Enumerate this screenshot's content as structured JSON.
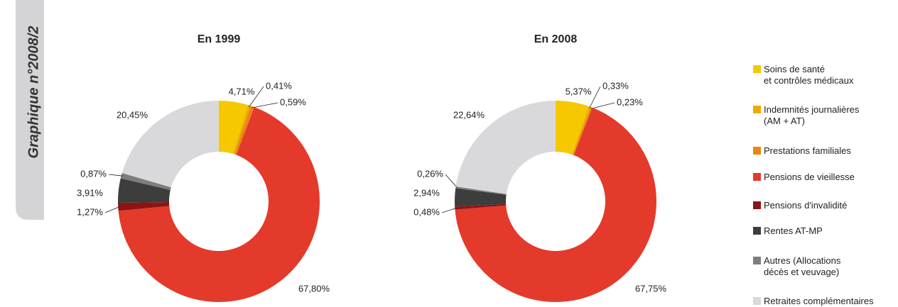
{
  "side_label": "Graphique n°2008/2",
  "chart_data": [
    {
      "type": "pie",
      "title": "En 1999",
      "categories": [
        "Soins de santé\net contrôles médicaux",
        "Indemnités journalières\n(AM + AT)",
        "Prestations familiales",
        "Pensions de vieillesse",
        "Pensions d'invalidité",
        "Rentes AT-MP",
        "Autres (Allocations\ndécès et veuvage)",
        "Retraites complémentaires"
      ],
      "values": [
        4.71,
        0.41,
        0.59,
        67.8,
        1.27,
        3.91,
        0.87,
        20.45
      ],
      "value_labels": [
        "4,71%",
        "0,41%",
        "0,59%",
        "67,80%",
        "1,27%",
        "3,91%",
        "0,87%",
        "20,45%"
      ],
      "colors": [
        "#f5c800",
        "#efa900",
        "#e8870e",
        "#e43a2b",
        "#8e1414",
        "#3d3d3d",
        "#7d7d7d",
        "#d9d9db"
      ]
    },
    {
      "type": "pie",
      "title": "En 2008",
      "categories": [
        "Soins de santé\net contrôles médicaux",
        "Indemnités journalières\n(AM + AT)",
        "Prestations familiales",
        "Pensions de vieillesse",
        "Pensions d'invalidité",
        "Rentes AT-MP",
        "Autres (Allocations\ndécès et veuvage)",
        "Retraites complémentaires"
      ],
      "values": [
        5.37,
        0.33,
        0.23,
        67.75,
        0.48,
        2.94,
        0.26,
        22.64
      ],
      "value_labels": [
        "5,37%",
        "0,33%",
        "0,23%",
        "67,75%",
        "0,48%",
        "2,94%",
        "0,26%",
        "22,64%"
      ],
      "colors": [
        "#f5c800",
        "#efa900",
        "#e8870e",
        "#e43a2b",
        "#8e1414",
        "#3d3d3d",
        "#7d7d7d",
        "#d9d9db"
      ]
    }
  ]
}
